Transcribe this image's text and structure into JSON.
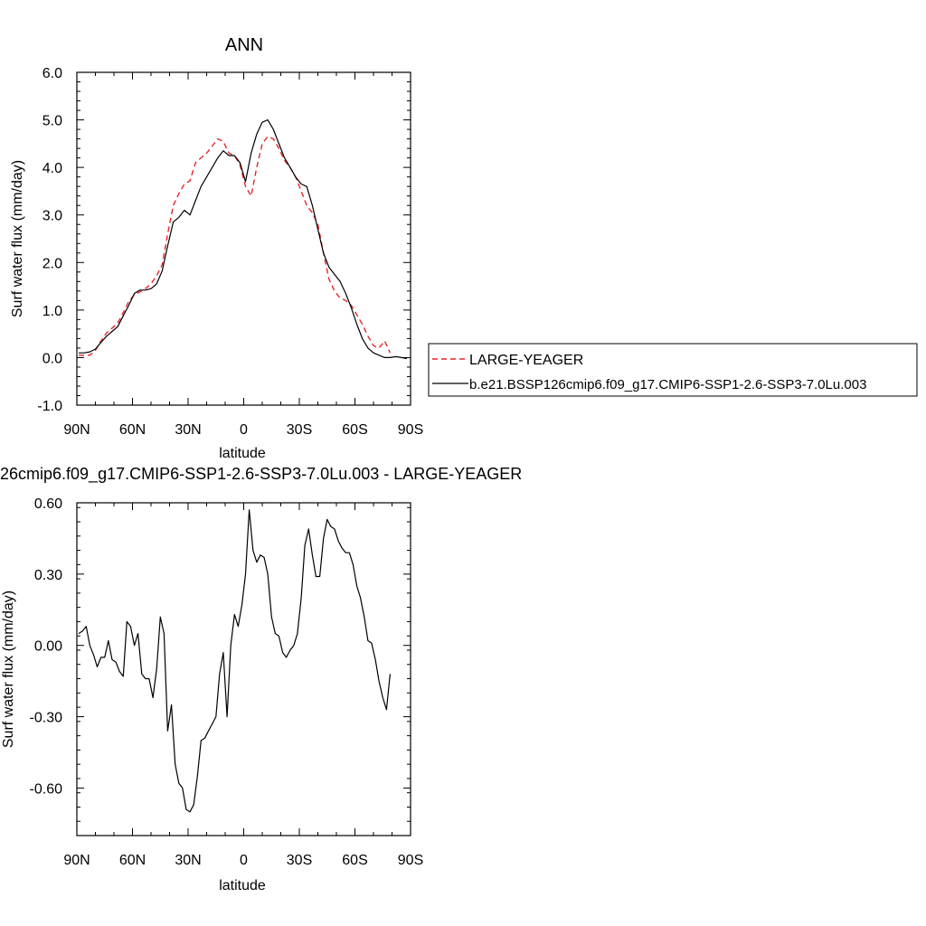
{
  "colors": {
    "control": "#e8262a",
    "case": "#000000",
    "frame": "#000000"
  },
  "legend": {
    "entries": [
      "LARGE-YEAGER",
      "b.e21.BSSP126cmip6.f09_g17.CMIP6-SSP1-2.6-SSP3-7.0Lu.003"
    ]
  },
  "chart_data": [
    {
      "type": "line",
      "title": "ANN",
      "xlabel": "latitude",
      "ylabel": "Surf water flux (mm/day)",
      "xlim": [
        90,
        -90
      ],
      "ylim": [
        -1.0,
        6.0
      ],
      "xticks": [
        90,
        60,
        30,
        0,
        -30,
        -60,
        -90
      ],
      "xtick_labels": [
        "90N",
        "60N",
        "30N",
        "0",
        "30S",
        "60S",
        "90S"
      ],
      "yticks": [
        -1.0,
        0.0,
        1.0,
        2.0,
        3.0,
        4.0,
        5.0,
        6.0
      ],
      "ytick_labels": [
        "-1.0",
        "0.0",
        "1.0",
        "2.0",
        "3.0",
        "4.0",
        "5.0",
        "6.0"
      ],
      "grid": false,
      "legend_position": "right",
      "series": [
        {
          "name": "LARGE-YEAGER",
          "color": "#e8262a",
          "dash": "dashed",
          "x": [
            89,
            86,
            83,
            80,
            77,
            74,
            71,
            68,
            65,
            62,
            59,
            56,
            53,
            50,
            47,
            44,
            41,
            38,
            35,
            32,
            29,
            26,
            23,
            20,
            17,
            14,
            11,
            8,
            5,
            2,
            -1,
            -4,
            -7,
            -10,
            -13,
            -16,
            -19,
            -22,
            -25,
            -28,
            -31,
            -34,
            -37,
            -40,
            -43,
            -46,
            -49,
            -52,
            -55,
            -58,
            -61,
            -64,
            -67,
            -70,
            -73,
            -76,
            -79
          ],
          "y": [
            0.05,
            0.05,
            0.05,
            0.15,
            0.35,
            0.52,
            0.62,
            0.72,
            0.95,
            1.18,
            1.32,
            1.38,
            1.45,
            1.55,
            1.72,
            1.95,
            2.6,
            3.2,
            3.45,
            3.65,
            3.72,
            4.1,
            4.2,
            4.3,
            4.45,
            4.6,
            4.55,
            4.3,
            4.25,
            4.05,
            3.6,
            3.4,
            4.0,
            4.5,
            4.65,
            4.6,
            4.4,
            4.15,
            4.0,
            3.8,
            3.5,
            3.2,
            3.05,
            2.8,
            2.2,
            1.65,
            1.4,
            1.25,
            1.2,
            1.1,
            0.9,
            0.7,
            0.45,
            0.25,
            0.2,
            0.35,
            0.1
          ]
        },
        {
          "name": "b.e21.BSSP126cmip6.f09_g17.CMIP6-SSP1-2.6-SSP3-7.0Lu.003",
          "color": "#000000",
          "dash": "solid",
          "x": [
            89,
            86,
            83,
            80,
            77,
            74,
            71,
            68,
            65,
            62,
            59,
            56,
            53,
            50,
            47,
            44,
            41,
            38,
            35,
            32,
            29,
            26,
            23,
            20,
            17,
            14,
            11,
            8,
            5,
            2,
            -1,
            -4,
            -7,
            -10,
            -13,
            -16,
            -19,
            -22,
            -25,
            -28,
            -31,
            -34,
            -37,
            -40,
            -43,
            -46,
            -49,
            -52,
            -55,
            -58,
            -61,
            -64,
            -67,
            -70,
            -73,
            -76,
            -79,
            -82,
            -85,
            -88
          ],
          "y": [
            0.1,
            0.1,
            0.12,
            0.18,
            0.32,
            0.45,
            0.55,
            0.65,
            0.88,
            1.1,
            1.35,
            1.42,
            1.42,
            1.45,
            1.55,
            1.82,
            2.35,
            2.85,
            2.95,
            3.1,
            3.0,
            3.3,
            3.6,
            3.8,
            4.0,
            4.2,
            4.35,
            4.25,
            4.25,
            4.1,
            3.7,
            4.3,
            4.7,
            4.95,
            5.0,
            4.8,
            4.5,
            4.2,
            4.0,
            3.8,
            3.65,
            3.6,
            3.2,
            2.7,
            2.2,
            1.9,
            1.75,
            1.6,
            1.35,
            1.05,
            0.7,
            0.4,
            0.2,
            0.1,
            0.05,
            0.0,
            0.0,
            0.02,
            0.0,
            -0.02
          ]
        }
      ]
    },
    {
      "type": "line",
      "title": "26cmip6.f09_g17.CMIP6-SSP1-2.6-SSP3-7.0Lu.003 - LARGE-YEAGER",
      "xlabel": "latitude",
      "ylabel": "Surf water flux (mm/day)",
      "xlim": [
        90,
        -90
      ],
      "ylim": [
        -0.8,
        0.6
      ],
      "xticks": [
        90,
        60,
        30,
        0,
        -30,
        -60,
        -90
      ],
      "xtick_labels": [
        "90N",
        "60N",
        "30N",
        "0",
        "30S",
        "60S",
        "90S"
      ],
      "yticks": [
        -0.6,
        -0.3,
        0.0,
        0.3,
        0.6
      ],
      "ytick_labels": [
        "-0.60",
        "-0.30",
        "0.00",
        "0.30",
        "0.60"
      ],
      "grid": false,
      "series": [
        {
          "color": "#000000",
          "dash": "solid",
          "x": [
            89,
            87,
            85,
            83,
            81,
            79,
            77,
            75,
            73,
            71,
            69,
            67,
            65,
            63,
            61,
            59,
            57,
            55,
            53,
            51,
            49,
            47,
            45,
            43,
            41,
            39,
            37,
            35,
            33,
            31,
            29,
            27,
            25,
            23,
            21,
            19,
            17,
            15,
            13,
            11,
            9,
            7,
            5,
            3,
            1,
            -1,
            -3,
            -5,
            -7,
            -9,
            -11,
            -13,
            -15,
            -17,
            -19,
            -21,
            -23,
            -25,
            -27,
            -29,
            -31,
            -33,
            -35,
            -37,
            -39,
            -41,
            -43,
            -45,
            -47,
            -49,
            -51,
            -53,
            -55,
            -57,
            -59,
            -61,
            -63,
            -65,
            -67,
            -69,
            -71,
            -73,
            -75,
            -77,
            -79
          ],
          "y": [
            0.05,
            0.06,
            0.08,
            0.0,
            -0.04,
            -0.09,
            -0.05,
            -0.05,
            0.02,
            -0.06,
            -0.07,
            -0.11,
            -0.13,
            0.1,
            0.08,
            0.0,
            0.05,
            -0.12,
            -0.14,
            -0.14,
            -0.22,
            -0.1,
            0.12,
            0.05,
            -0.36,
            -0.25,
            -0.5,
            -0.58,
            -0.6,
            -0.69,
            -0.7,
            -0.67,
            -0.55,
            -0.4,
            -0.39,
            -0.36,
            -0.33,
            -0.3,
            -0.12,
            -0.03,
            -0.3,
            0.0,
            0.13,
            0.08,
            0.17,
            0.3,
            0.57,
            0.4,
            0.35,
            0.38,
            0.37,
            0.3,
            0.12,
            0.05,
            0.04,
            -0.03,
            -0.05,
            -0.02,
            0.0,
            0.05,
            0.2,
            0.42,
            0.49,
            0.38,
            0.29,
            0.29,
            0.45,
            0.53,
            0.5,
            0.49,
            0.44,
            0.41,
            0.39,
            0.39,
            0.34,
            0.25,
            0.2,
            0.12,
            0.02,
            0.01,
            -0.06,
            -0.15,
            -0.22,
            -0.27,
            -0.12
          ]
        }
      ]
    }
  ]
}
